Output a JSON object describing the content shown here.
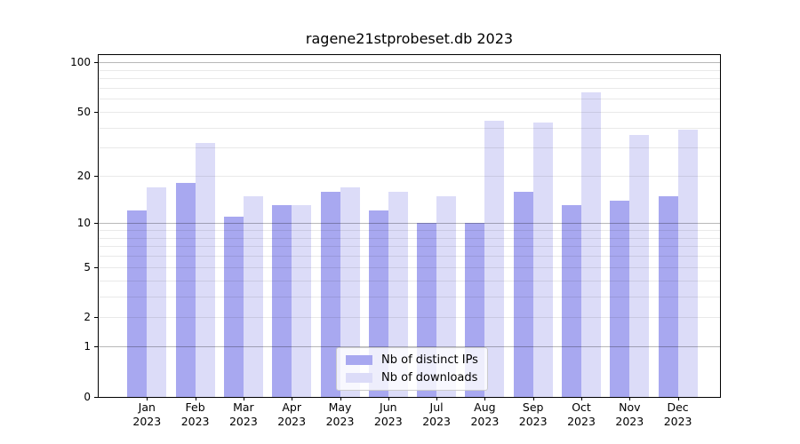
{
  "chart_data": {
    "type": "bar",
    "title": "ragene21stprobeset.db 2023",
    "categories": [
      "Jan",
      "Feb",
      "Mar",
      "Apr",
      "May",
      "Jun",
      "Jul",
      "Aug",
      "Sep",
      "Oct",
      "Nov",
      "Dec"
    ],
    "year_label": "2023",
    "series": [
      {
        "name": "Nb of distinct IPs",
        "color": "#a8a8f0",
        "values": [
          12,
          18,
          11,
          13,
          16,
          12,
          10,
          10,
          16,
          13,
          14,
          15
        ]
      },
      {
        "name": "Nb of downloads",
        "color": "#dcdcf8",
        "values": [
          17,
          32,
          15,
          13,
          17,
          16,
          15,
          44,
          43,
          66,
          36,
          39
        ]
      }
    ],
    "y_axis": {
      "scale": "log10(value+1)",
      "tick_labels": [
        100,
        50,
        20,
        10,
        5,
        2,
        1,
        0
      ],
      "major_gridlines": [
        1,
        10,
        100
      ],
      "minor_gridlines": [
        2,
        3,
        4,
        5,
        6,
        7,
        8,
        9,
        20,
        30,
        40,
        50,
        60,
        70,
        80,
        90
      ],
      "range": [
        0,
        110
      ]
    },
    "grid": true,
    "legend_position": "bottom-center",
    "gridlines_over_bars": true
  },
  "colors": {
    "bar_distinct_ips": "#a8a8f0",
    "bar_downloads": "#dcdcf8",
    "grid_major": "rgba(0,0,0,0.28)",
    "grid_minor": "rgba(0,0,0,0.085)",
    "spine": "#000000",
    "legend_border": "#cccccc",
    "background": "#ffffff"
  }
}
